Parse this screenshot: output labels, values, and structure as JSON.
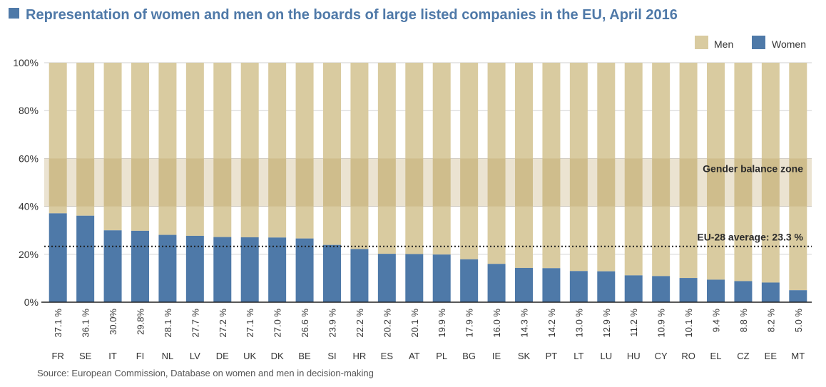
{
  "chart_data": {
    "type": "bar",
    "stacked": true,
    "title": "Representation of women and men on the boards of large listed companies in the EU, April 2016",
    "categories": [
      "FR",
      "SE",
      "IT",
      "FI",
      "NL",
      "LV",
      "DE",
      "UK",
      "DK",
      "BE",
      "SI",
      "HR",
      "ES",
      "AT",
      "PL",
      "BG",
      "IE",
      "SK",
      "PT",
      "LT",
      "LU",
      "HU",
      "CY",
      "RO",
      "EL",
      "CZ",
      "EE",
      "MT"
    ],
    "value_labels": [
      "37.1 %",
      "36.1 %",
      "30.0%",
      "29.8%",
      "28.1 %",
      "27.7 %",
      "27.2 %",
      "27.1 %",
      "27.0 %",
      "26.6 %",
      "23.9 %",
      "22.2 %",
      "20.2 %",
      "20.1 %",
      "19.9 %",
      "17.9 %",
      "16.0 %",
      "14.3 %",
      "14.2 %",
      "13.0 %",
      "12.9 %",
      "11.2 %",
      "10.9 %",
      "10.1 %",
      "9.4 %",
      "8.8 %",
      "8.2 %",
      "5.0 %"
    ],
    "series": [
      {
        "name": "Women",
        "color": "#4e79a8",
        "values": [
          37.1,
          36.1,
          30.0,
          29.8,
          28.1,
          27.7,
          27.2,
          27.1,
          27.0,
          26.6,
          23.9,
          22.2,
          20.2,
          20.1,
          19.9,
          17.9,
          16.0,
          14.3,
          14.2,
          13.0,
          12.9,
          11.2,
          10.9,
          10.1,
          9.4,
          8.8,
          8.2,
          5.0
        ]
      },
      {
        "name": "Men",
        "color": "#d9cba0",
        "values": [
          62.9,
          63.9,
          70.0,
          70.2,
          71.9,
          72.3,
          72.8,
          72.9,
          73.0,
          73.4,
          76.1,
          77.8,
          79.8,
          79.9,
          80.1,
          82.1,
          84.0,
          85.7,
          85.8,
          87.0,
          87.1,
          88.8,
          89.1,
          89.9,
          90.6,
          91.2,
          91.8,
          95.0
        ]
      }
    ],
    "yticks": [
      "0%",
      "20%",
      "40%",
      "60%",
      "80%",
      "100%"
    ],
    "ylim": [
      0,
      100
    ],
    "legend": {
      "position": "top-right",
      "items": [
        "Men",
        "Women"
      ]
    },
    "gender_balance_zone": {
      "label": "Gender balance zone",
      "range": [
        40,
        60
      ],
      "color": "#b89c5a"
    },
    "average_line": {
      "label": "EU-28 average: 23.3 %",
      "value": 23.3
    },
    "source": "Source: European Commission, Database on women and men in decision-making"
  }
}
